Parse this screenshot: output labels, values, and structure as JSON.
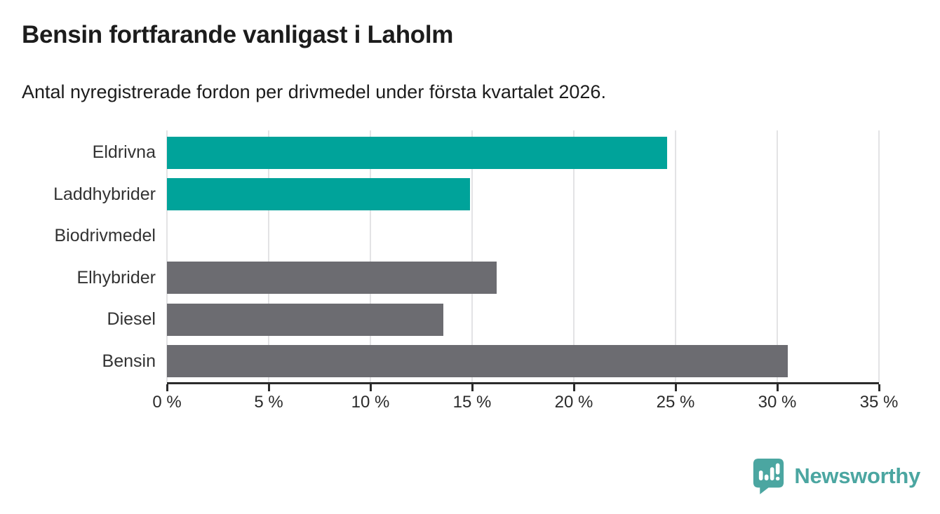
{
  "header": {
    "title": "Bensin fortfarande vanligast i Laholm",
    "subtitle": "Antal nyregistrerade fordon per drivmedel under första kvartalet 2026."
  },
  "chart_data": {
    "type": "bar",
    "orientation": "horizontal",
    "title": "Bensin fortfarande vanligast i Laholm",
    "xlabel": "",
    "ylabel": "",
    "categories": [
      "Eldrivna",
      "Laddhybrider",
      "Biodrivmedel",
      "Elhybrider",
      "Diesel",
      "Bensin"
    ],
    "values": [
      24.6,
      14.9,
      0,
      16.2,
      13.6,
      30.5
    ],
    "unit": "%",
    "bar_colors": [
      "#00a39a",
      "#00a39a",
      "#00a39a",
      "#6c6c71",
      "#6c6c71",
      "#6c6c71"
    ],
    "xlim": [
      0,
      35
    ],
    "x_ticks": [
      0,
      5,
      10,
      15,
      20,
      25,
      30,
      35
    ],
    "x_tick_labels": [
      "0 %",
      "5 %",
      "10 %",
      "15 %",
      "20 %",
      "25 %",
      "30 %",
      "35 %"
    ],
    "grid": "vertical-gridlines-on",
    "legend": "none"
  },
  "colors": {
    "accent_teal": "#00a39a",
    "neutral_gray": "#6c6c71",
    "gridline": "#e3e3e5",
    "axis": "#2b2b2b",
    "text": "#1c1c1c",
    "logo_teal": "#4ba6a1"
  },
  "footer": {
    "brand": "Newsworthy"
  }
}
